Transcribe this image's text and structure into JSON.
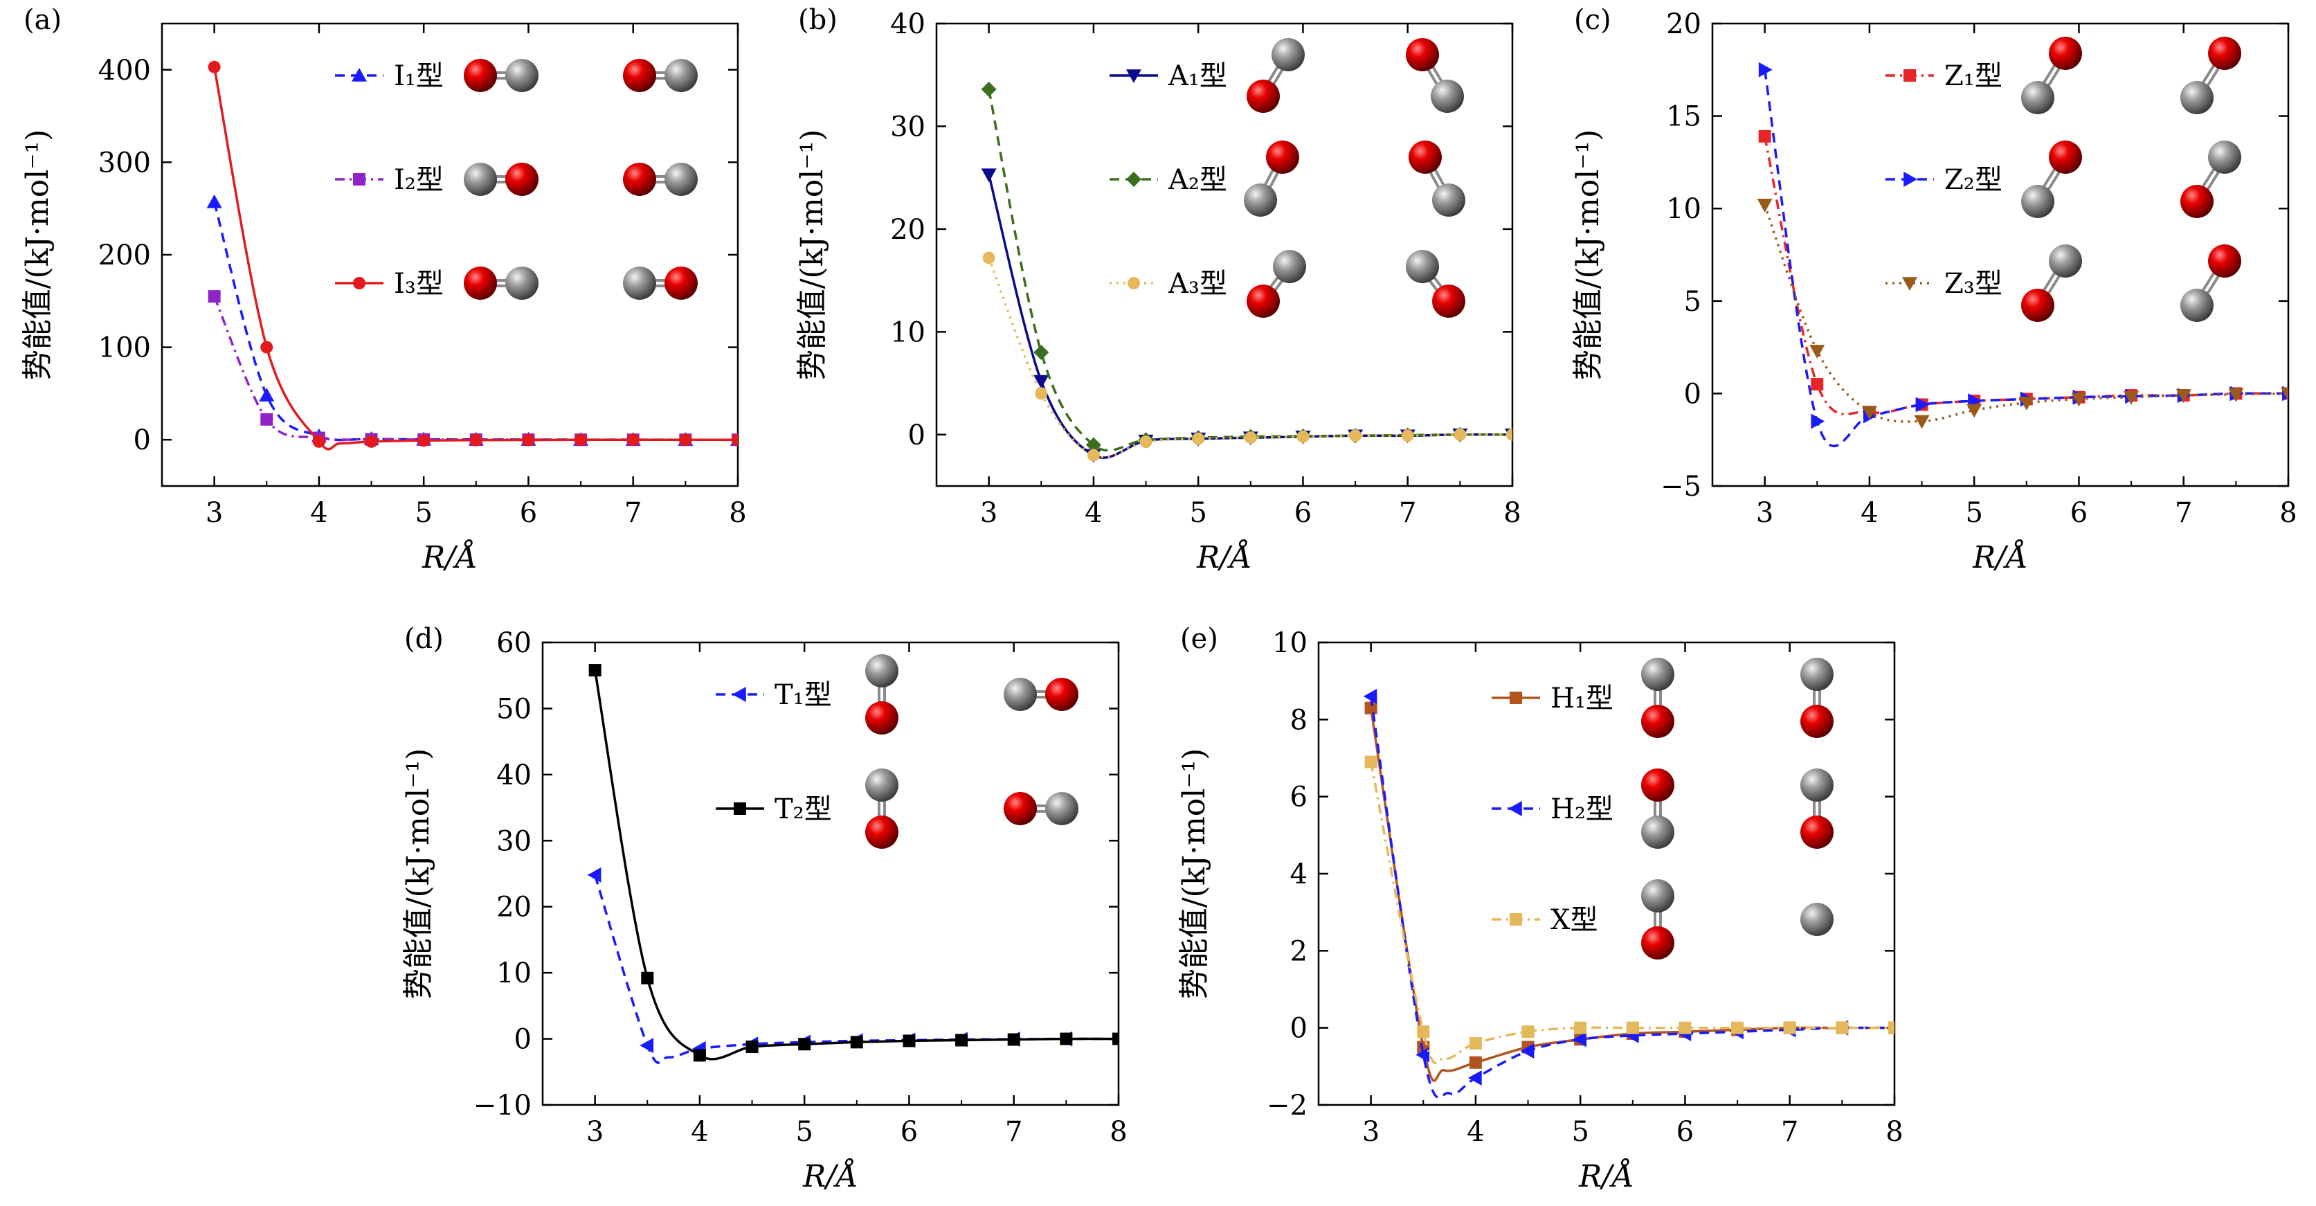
{
  "figure": {
    "axis_xlabel": "R/Å",
    "axis_ylabel": "势能值/(kJ·mol⁻¹)"
  },
  "chart_data": [
    {
      "panel": "(a)",
      "type": "line",
      "xlabel": "R/Å",
      "ylabel": "势能值/(kJ·mol⁻¹)",
      "xlim": [
        2.5,
        8
      ],
      "ylim": [
        -50,
        450
      ],
      "xticks": [
        3,
        4,
        5,
        6,
        7,
        8
      ],
      "yticks": [
        0,
        100,
        200,
        300,
        400
      ],
      "legend_position": "top-right",
      "series": [
        {
          "name": "I₁型",
          "color": "#1a1aff",
          "marker": "triangle-up",
          "dash": "dashed",
          "x": [
            3,
            3.5,
            4,
            4.5,
            5,
            5.5,
            6,
            6.5,
            7,
            7.5,
            8
          ],
          "y": [
            257,
            48,
            4,
            1,
            0.5,
            0.3,
            0.2,
            0.1,
            0.1,
            0,
            0
          ],
          "molecules": [
            [
              "red",
              "gray",
              "h"
            ],
            [
              "red",
              "gray",
              "h"
            ]
          ]
        },
        {
          "name": "I₂型",
          "color": "#8e24c8",
          "marker": "square",
          "dash": "dashdot",
          "x": [
            3,
            3.5,
            4,
            4.5,
            5,
            5.5,
            6,
            6.5,
            7,
            7.5,
            8
          ],
          "y": [
            155,
            22,
            2,
            0.5,
            0.2,
            0.1,
            0.1,
            0,
            0,
            0,
            0
          ],
          "molecules": [
            [
              "gray",
              "red",
              "h"
            ],
            [
              "red",
              "gray",
              "h"
            ]
          ]
        },
        {
          "name": "I₃型",
          "color": "#e31a1c",
          "marker": "circle",
          "dash": "solid",
          "x": [
            3,
            3.5,
            4,
            4.2,
            4.5,
            5,
            5.5,
            6,
            6.5,
            7,
            7.5,
            8
          ],
          "y": [
            403,
            100,
            -2,
            -4,
            -2,
            -0.8,
            -0.4,
            -0.2,
            -0.1,
            0,
            0,
            0
          ],
          "molecules": [
            [
              "red",
              "gray",
              "h"
            ],
            [
              "gray",
              "red",
              "h"
            ]
          ]
        }
      ]
    },
    {
      "panel": "(b)",
      "type": "line",
      "xlabel": "R/Å",
      "ylabel": "势能值/(kJ·mol⁻¹)",
      "xlim": [
        2.5,
        8
      ],
      "ylim": [
        -5,
        40
      ],
      "xticks": [
        3,
        4,
        5,
        6,
        7,
        8
      ],
      "yticks": [
        0,
        10,
        20,
        30,
        40
      ],
      "legend_position": "top-right",
      "series": [
        {
          "name": "A₁型",
          "color": "#0a0a8c",
          "marker": "triangle-down",
          "dash": "solid",
          "x": [
            3,
            3.5,
            4,
            4.5,
            5,
            5.5,
            6,
            6.5,
            7,
            7.5,
            8
          ],
          "y": [
            25.3,
            5.2,
            -2.0,
            -0.6,
            -0.4,
            -0.3,
            -0.2,
            -0.1,
            -0.1,
            0,
            0
          ],
          "molecules": [
            [
              "gray",
              "red",
              "a1"
            ],
            [
              "red",
              "gray",
              "a2"
            ]
          ]
        },
        {
          "name": "A₂型",
          "color": "#3b6e1f",
          "marker": "diamond",
          "dash": "dashed",
          "x": [
            3,
            3.5,
            4,
            4.5,
            5,
            5.5,
            6,
            6.5,
            7,
            7.5,
            8
          ],
          "y": [
            33.6,
            8.0,
            -1.0,
            -0.5,
            -0.3,
            -0.2,
            -0.15,
            -0.1,
            -0.05,
            0,
            0
          ],
          "molecules": [
            [
              "red",
              "gray",
              "a3"
            ],
            [
              "red",
              "gray",
              "a4"
            ]
          ]
        },
        {
          "name": "A₃型",
          "color": "#e6b85c",
          "marker": "circle",
          "dash": "dotted",
          "x": [
            3,
            3.5,
            4,
            4.5,
            5,
            5.5,
            6,
            6.5,
            7,
            7.5,
            8
          ],
          "y": [
            17.2,
            4.0,
            -2.0,
            -0.7,
            -0.4,
            -0.3,
            -0.2,
            -0.1,
            -0.1,
            0,
            0
          ],
          "molecules": [
            [
              "gray",
              "red",
              "a5"
            ],
            [
              "gray",
              "red",
              "a6"
            ]
          ]
        }
      ]
    },
    {
      "panel": "(c)",
      "type": "line",
      "xlabel": "R/Å",
      "ylabel": "势能值/(kJ·mol⁻¹)",
      "xlim": [
        2.5,
        8
      ],
      "ylim": [
        -5,
        20
      ],
      "xticks": [
        3,
        4,
        5,
        6,
        7,
        8
      ],
      "yticks": [
        -5,
        0,
        5,
        10,
        15,
        20
      ],
      "legend_position": "top-right",
      "series": [
        {
          "name": "Z₁型",
          "color": "#e8262a",
          "marker": "square",
          "dash": "dashdot",
          "x": [
            3,
            3.5,
            4,
            4.5,
            5,
            5.5,
            6,
            6.5,
            7,
            7.5,
            8
          ],
          "y": [
            13.9,
            0.5,
            -1.0,
            -0.6,
            -0.4,
            -0.3,
            -0.2,
            -0.1,
            -0.1,
            0,
            0
          ],
          "molecules": [
            [
              "gray",
              "red",
              "z"
            ],
            [
              "gray",
              "red",
              "z"
            ]
          ]
        },
        {
          "name": "Z₂型",
          "color": "#1a1aff",
          "marker": "triangle-right",
          "dash": "dashed",
          "x": [
            3,
            3.5,
            4,
            4.5,
            5,
            5.5,
            6,
            6.5,
            7,
            7.5,
            8
          ],
          "y": [
            17.5,
            -1.5,
            -1.2,
            -0.6,
            -0.4,
            -0.3,
            -0.2,
            -0.15,
            -0.1,
            0,
            0
          ],
          "molecules": [
            [
              "gray",
              "red",
              "z"
            ],
            [
              "red",
              "gray",
              "z"
            ]
          ]
        },
        {
          "name": "Z₃型",
          "color": "#9a5a1a",
          "marker": "triangle-down",
          "dash": "dotted",
          "x": [
            3,
            3.5,
            4,
            4.5,
            5,
            5.5,
            6,
            6.5,
            7,
            7.5,
            8
          ],
          "y": [
            10.2,
            2.3,
            -1.0,
            -1.5,
            -0.9,
            -0.5,
            -0.3,
            -0.2,
            -0.1,
            -0.05,
            0
          ],
          "molecules": [
            [
              "red",
              "gray",
              "z"
            ],
            [
              "gray",
              "red",
              "z"
            ]
          ]
        }
      ]
    },
    {
      "panel": "(d)",
      "type": "line",
      "xlabel": "R/Å",
      "ylabel": "势能值/(kJ·mol⁻¹)",
      "xlim": [
        2.5,
        8
      ],
      "ylim": [
        -10,
        60
      ],
      "xticks": [
        3,
        4,
        5,
        6,
        7,
        8
      ],
      "yticks": [
        -10,
        0,
        10,
        20,
        30,
        40,
        50,
        60
      ],
      "legend_position": "top-right",
      "series": [
        {
          "name": "T₁型",
          "color": "#1a1aff",
          "marker": "triangle-left",
          "dash": "dashed",
          "x": [
            3,
            3.5,
            3.7,
            4,
            4.5,
            5,
            5.5,
            6,
            6.5,
            7,
            7.5,
            8
          ],
          "y": [
            24.8,
            -1.0,
            -2.8,
            -1.5,
            -0.8,
            -0.5,
            -0.3,
            -0.2,
            -0.1,
            -0.05,
            0,
            0
          ],
          "molecules": [
            [
              "gray",
              "red",
              "v"
            ],
            [
              "gray",
              "red",
              "h"
            ]
          ]
        },
        {
          "name": "T₂型",
          "color": "#000000",
          "marker": "square",
          "dash": "solid",
          "x": [
            3,
            3.5,
            4,
            4.5,
            5,
            5.5,
            6,
            6.5,
            7,
            7.5,
            8
          ],
          "y": [
            55.8,
            9.2,
            -2.5,
            -1.2,
            -0.8,
            -0.5,
            -0.3,
            -0.2,
            -0.1,
            0,
            0
          ],
          "molecules": [
            [
              "gray",
              "red",
              "v"
            ],
            [
              "red",
              "gray",
              "h"
            ]
          ]
        }
      ]
    },
    {
      "panel": "(e)",
      "type": "line",
      "xlabel": "R/Å",
      "ylabel": "势能值/(kJ·mol⁻¹)",
      "xlim": [
        2.5,
        8
      ],
      "ylim": [
        -2,
        10
      ],
      "xticks": [
        3,
        4,
        5,
        6,
        7,
        8
      ],
      "yticks": [
        -2,
        0,
        2,
        4,
        6,
        8,
        10
      ],
      "legend_position": "top-right",
      "series": [
        {
          "name": "H₁型",
          "color": "#b3541e",
          "marker": "square",
          "dash": "solid",
          "x": [
            3,
            3.5,
            3.7,
            4,
            4.5,
            5,
            5.5,
            6,
            6.5,
            7,
            7.5,
            8
          ],
          "y": [
            8.3,
            -0.5,
            -1.1,
            -0.9,
            -0.5,
            -0.3,
            -0.15,
            -0.1,
            -0.05,
            0,
            0,
            0
          ],
          "molecules": [
            [
              "gray",
              "red",
              "v"
            ],
            [
              "gray",
              "red",
              "v"
            ]
          ]
        },
        {
          "name": "H₂型",
          "color": "#1a1aff",
          "marker": "triangle-left",
          "dash": "dashed",
          "x": [
            3,
            3.5,
            3.75,
            4,
            4.5,
            5,
            5.5,
            6,
            6.5,
            7,
            7.5,
            8
          ],
          "y": [
            8.6,
            -0.7,
            -1.7,
            -1.3,
            -0.6,
            -0.3,
            -0.2,
            -0.15,
            -0.1,
            -0.05,
            0,
            0
          ],
          "molecules": [
            [
              "red",
              "gray",
              "v"
            ],
            [
              "gray",
              "red",
              "v"
            ]
          ]
        },
        {
          "name": "X型",
          "color": "#e6b85c",
          "marker": "square",
          "dash": "dashdot",
          "x": [
            3,
            3.5,
            3.7,
            4,
            4.5,
            5,
            5.5,
            6,
            6.5,
            7,
            7.5,
            8
          ],
          "y": [
            6.9,
            -0.1,
            -0.8,
            -0.4,
            -0.1,
            0,
            0,
            0,
            0,
            0,
            0,
            0
          ],
          "molecules": [
            [
              "gray",
              "red",
              "v"
            ],
            [
              "gray",
              null,
              "v"
            ]
          ]
        }
      ]
    }
  ]
}
